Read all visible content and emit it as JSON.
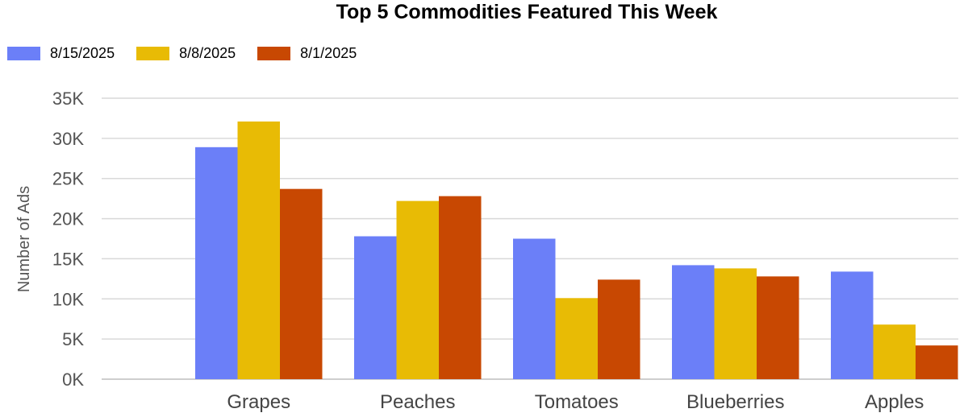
{
  "chart_data": {
    "type": "bar",
    "title": "Top 5 Commodities Featured This Week",
    "ylabel": "Number of Ads",
    "xlabel": "",
    "categories": [
      "Grapes",
      "Peaches",
      "Tomatoes",
      "Blueberries",
      "Apples"
    ],
    "series": [
      {
        "name": "8/15/2025",
        "color": "#6b7ff8",
        "values": [
          28900,
          17800,
          17500,
          14200,
          13400
        ]
      },
      {
        "name": "8/8/2025",
        "color": "#e8bb05",
        "values": [
          32100,
          22200,
          10100,
          13800,
          6800
        ]
      },
      {
        "name": "8/1/2025",
        "color": "#c84802",
        "values": [
          23700,
          22800,
          12400,
          12800,
          4200
        ]
      }
    ],
    "ylim": [
      0,
      35000
    ],
    "yticks": [
      {
        "value": 0,
        "label": "0K"
      },
      {
        "value": 5000,
        "label": "5K"
      },
      {
        "value": 10000,
        "label": "10K"
      },
      {
        "value": 15000,
        "label": "15K"
      },
      {
        "value": 20000,
        "label": "20K"
      },
      {
        "value": 25000,
        "label": "25K"
      },
      {
        "value": 30000,
        "label": "30K"
      },
      {
        "value": 35000,
        "label": "35K"
      }
    ],
    "grid": true,
    "legend_position": "top-left"
  }
}
